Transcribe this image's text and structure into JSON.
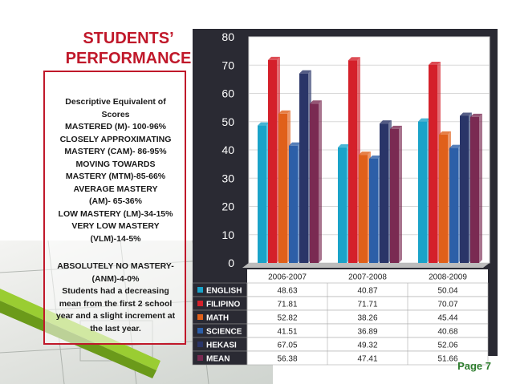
{
  "slide": {
    "title_line1": "STUDENTS’",
    "title_line2": "PERFORMANCE",
    "page_label": "Page 7"
  },
  "legend": {
    "lines": [
      "Descriptive Equivalent of",
      "Scores",
      "MASTERED (M)- 100-96%",
      "CLOSELY APPROXIMATING",
      "MASTERY (CAM)- 86-95%",
      "MOVING TOWARDS",
      "MASTERY (MTM)-85-66%",
      "AVERAGE MASTERY",
      "(AM)- 65-36%",
      "LOW MASTERY (LM)-34-15%",
      "VERY LOW MASTERY",
      "(VLM)-14-5%"
    ],
    "note_lines": [
      "ABSOLUTELY NO MASTERY-",
      "(ANM)-4-0%",
      "Students had a decreasing",
      "mean from the first 2 school",
      "year and a slight increment at",
      "the last year."
    ]
  },
  "chart_data": {
    "type": "bar",
    "categories": [
      "2006-2007",
      "2007-2008",
      "2008-2009"
    ],
    "series": [
      {
        "name": "ENGLISH",
        "color": "#1aa3c9",
        "values": [
          48.63,
          40.87,
          50.04
        ]
      },
      {
        "name": "FILIPINO",
        "color": "#d4202a",
        "values": [
          71.81,
          71.71,
          70.07
        ]
      },
      {
        "name": "MATH",
        "color": "#e0601a",
        "values": [
          52.82,
          38.26,
          45.44
        ]
      },
      {
        "name": "SCIENCE",
        "color": "#2c5fa8",
        "values": [
          41.51,
          36.89,
          40.68
        ]
      },
      {
        "name": "HEKASI",
        "color": "#2a3568",
        "values": [
          67.05,
          49.32,
          52.06
        ]
      },
      {
        "name": "MEAN",
        "color": "#7a2a52",
        "values": [
          56.38,
          47.41,
          51.66
        ]
      }
    ],
    "y_ticks": [
      "0",
      "10",
      "20",
      "30",
      "40",
      "50",
      "60",
      "70",
      "80"
    ],
    "ylim": [
      0,
      80
    ],
    "table_values": [
      [
        "48.63",
        "40.87",
        "50.04"
      ],
      [
        "71.81",
        "71.71",
        "70.07"
      ],
      [
        "52.82",
        "38.26",
        "45.44"
      ],
      [
        "41.51",
        "36.89",
        "40.68"
      ],
      [
        "67.05",
        "49.32",
        "52.06"
      ],
      [
        "56.38",
        "47.41",
        "51.66"
      ]
    ]
  }
}
